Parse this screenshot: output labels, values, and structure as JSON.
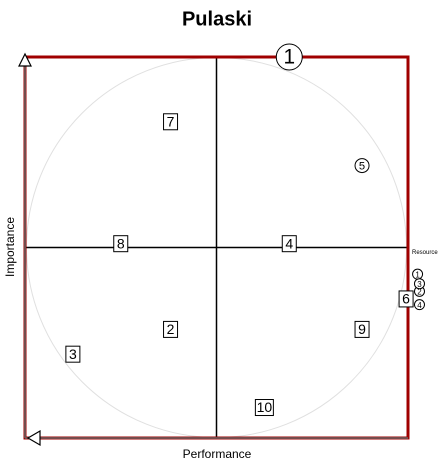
{
  "chart_data": {
    "type": "scatter",
    "title": "Pulaski",
    "x_label": "Performance",
    "y_label": "Importance",
    "annotation": "Resource",
    "xlim": [
      -1,
      1
    ],
    "ylim": [
      -1,
      1
    ],
    "frame_color": "#a00000",
    "guide_circle": true,
    "series": [
      {
        "shape": "square",
        "color": "#000000",
        "labels": [
          "7",
          "8",
          "4",
          "2",
          "3",
          "9",
          "10",
          "6"
        ],
        "x": [
          -0.24,
          -0.5,
          0.38,
          -0.24,
          -0.75,
          0.76,
          0.25,
          0.99
        ],
        "values": [
          0.66,
          0.02,
          0.02,
          -0.43,
          -0.56,
          -0.43,
          -0.84,
          -0.27
        ]
      },
      {
        "shape": "circle",
        "color": "#000000",
        "labels": [
          "1",
          "5",
          "1",
          "2",
          "3",
          "4"
        ],
        "x": [
          0.38,
          0.76,
          1.05,
          1.06,
          1.06,
          1.06
        ],
        "values": [
          1.0,
          0.43,
          -0.14,
          -0.23,
          -0.19,
          -0.3
        ],
        "sizes": [
          13,
          7,
          5,
          5,
          5,
          5
        ]
      }
    ]
  }
}
